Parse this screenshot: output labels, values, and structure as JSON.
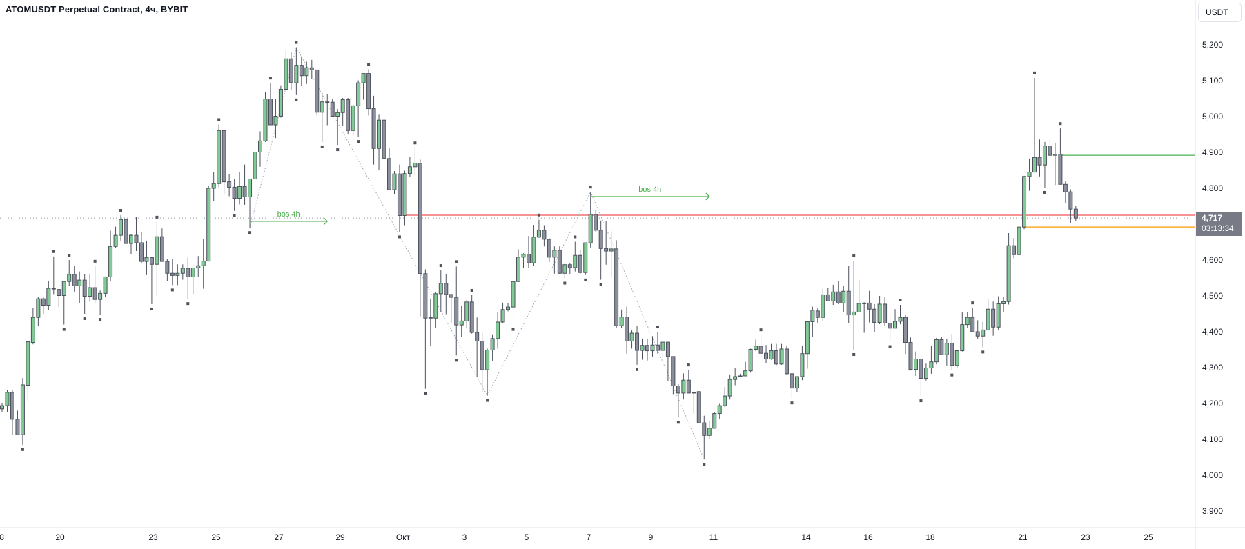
{
  "header": {
    "title": "ATOMUSDT Perpetual Contract, 4ч, BYBIT"
  },
  "price_axis": {
    "unit_button": "USDT",
    "ticks": [
      "5,200",
      "5,100",
      "5,000",
      "4,900",
      "4,800",
      "4,600",
      "4,500",
      "4,400",
      "4,300",
      "4,200",
      "4,100",
      "4,000",
      "3,900"
    ],
    "tick_values": [
      5200,
      5100,
      5000,
      4900,
      4800,
      4600,
      4500,
      4400,
      4300,
      4200,
      4100,
      4000,
      3900
    ],
    "current_price": "4,717",
    "countdown": "03:13:34"
  },
  "time_axis": {
    "ticks": [
      "8",
      "20",
      "23",
      "25",
      "27",
      "29",
      "Окт",
      "3",
      "5",
      "7",
      "9",
      "11",
      "14",
      "16",
      "18",
      "21",
      "23",
      "25"
    ]
  },
  "colors": {
    "bull": "#81c995",
    "bear": "#8b8e9b",
    "outline": "#4c515c",
    "bos": "#4caf50",
    "level_red": "#ef5350",
    "level_green": "#4caf50",
    "level_orange": "#ff9800",
    "price_tag": "#787b86"
  },
  "chart_data": {
    "type": "candlestick",
    "symbol": "ATOMUSDT",
    "timeframe": "4h",
    "ylim": [
      3850,
      5280
    ],
    "ohlc_fields": [
      "open",
      "high",
      "low",
      "close"
    ],
    "candles": [
      [
        4185,
        4200,
        4175,
        4194
      ],
      [
        4194,
        4237,
        4176,
        4231
      ],
      [
        4231,
        4237,
        4112,
        4156
      ],
      [
        4156,
        4180,
        4112,
        4113
      ],
      [
        4113,
        4271,
        4085,
        4252
      ],
      [
        4251,
        4372,
        4207,
        4372
      ],
      [
        4370,
        4467,
        4365,
        4440
      ],
      [
        4440,
        4496,
        4416,
        4492
      ],
      [
        4492,
        4496,
        4450,
        4474
      ],
      [
        4474,
        4541,
        4460,
        4521
      ],
      [
        4521,
        4610,
        4505,
        4521
      ],
      [
        4518,
        4518,
        4469,
        4501
      ],
      [
        4501,
        4540,
        4420,
        4540
      ],
      [
        4540,
        4600,
        4528,
        4560
      ],
      [
        4560,
        4583,
        4512,
        4528
      ],
      [
        4528,
        4568,
        4480,
        4544
      ],
      [
        4544,
        4560,
        4450,
        4499
      ],
      [
        4499,
        4562,
        4484,
        4523
      ],
      [
        4523,
        4583,
        4480,
        4490
      ],
      [
        4490,
        4515,
        4448,
        4507
      ],
      [
        4507,
        4553,
        4496,
        4553
      ],
      [
        4553,
        4682,
        4541,
        4638
      ],
      [
        4638,
        4693,
        4634,
        4669
      ],
      [
        4669,
        4725,
        4654,
        4713
      ],
      [
        4713,
        4721,
        4623,
        4646
      ],
      [
        4646,
        4672,
        4617,
        4669
      ],
      [
        4669,
        4720,
        4625,
        4648
      ],
      [
        4648,
        4678,
        4591,
        4596
      ],
      [
        4596,
        4654,
        4558,
        4607
      ],
      [
        4607,
        4607,
        4477,
        4588
      ],
      [
        4588,
        4706,
        4500,
        4665
      ],
      [
        4665,
        4688,
        4596,
        4596
      ],
      [
        4596,
        4602,
        4541,
        4563
      ],
      [
        4563,
        4602,
        4530,
        4557
      ],
      [
        4557,
        4588,
        4530,
        4563
      ],
      [
        4563,
        4588,
        4545,
        4577
      ],
      [
        4577,
        4607,
        4492,
        4553
      ],
      [
        4553,
        4579,
        4505,
        4578
      ],
      [
        4578,
        4611,
        4553,
        4584
      ],
      [
        4584,
        4659,
        4520,
        4597
      ],
      [
        4597,
        4807,
        4596,
        4800
      ],
      [
        4800,
        4845,
        4765,
        4813
      ],
      [
        4813,
        4978,
        4803,
        4961
      ],
      [
        4961,
        4961,
        4784,
        4818
      ],
      [
        4818,
        4840,
        4778,
        4803
      ],
      [
        4803,
        4826,
        4737,
        4772
      ],
      [
        4772,
        4845,
        4755,
        4805
      ],
      [
        4805,
        4866,
        4754,
        4776
      ],
      [
        4776,
        4826,
        4690,
        4826
      ],
      [
        4826,
        4904,
        4798,
        4901
      ],
      [
        4901,
        4959,
        4860,
        4932
      ],
      [
        4932,
        5069,
        4929,
        5049
      ],
      [
        5049,
        5094,
        4977,
        4977
      ],
      [
        4977,
        5048,
        4940,
        5001
      ],
      [
        5001,
        5087,
        4997,
        5076
      ],
      [
        5076,
        5186,
        5073,
        5161
      ],
      [
        5161,
        5180,
        5073,
        5094
      ],
      [
        5094,
        5193,
        5060,
        5143
      ],
      [
        5143,
        5168,
        5085,
        5114
      ],
      [
        5114,
        5153,
        5091,
        5136
      ],
      [
        5136,
        5158,
        5104,
        5130
      ],
      [
        5130,
        5130,
        5003,
        5012
      ],
      [
        5012,
        5066,
        4929,
        5041
      ],
      [
        5041,
        5063,
        4976,
        5040
      ],
      [
        5040,
        5049,
        5001,
        5001
      ],
      [
        5001,
        5021,
        4921,
        5011
      ],
      [
        5011,
        5052,
        4974,
        5047
      ],
      [
        5047,
        5052,
        4950,
        4961
      ],
      [
        4961,
        5033,
        4948,
        5030
      ],
      [
        5030,
        5101,
        4944,
        5094
      ],
      [
        5094,
        5120,
        5047,
        5120
      ],
      [
        5120,
        5132,
        5003,
        5022
      ],
      [
        5022,
        5058,
        4866,
        4911
      ],
      [
        4911,
        5005,
        4851,
        4990
      ],
      [
        4990,
        4993,
        4824,
        4883
      ],
      [
        4883,
        4911,
        4796,
        4796
      ],
      [
        4796,
        4848,
        4783,
        4840
      ],
      [
        4840,
        4866,
        4678,
        4724
      ],
      [
        4724,
        4849,
        4697,
        4841
      ],
      [
        4841,
        4887,
        4832,
        4860
      ],
      [
        4860,
        4913,
        4834,
        4870
      ],
      [
        4870,
        4880,
        4443,
        4562
      ],
      [
        4562,
        4574,
        4241,
        4438
      ],
      [
        4438,
        4491,
        4360,
        4440
      ],
      [
        4438,
        4510,
        4410,
        4506
      ],
      [
        4506,
        4571,
        4456,
        4535
      ],
      [
        4535,
        4560,
        4449,
        4504
      ],
      [
        4504,
        4504,
        4424,
        4496
      ],
      [
        4496,
        4582,
        4334,
        4419
      ],
      [
        4419,
        4472,
        4385,
        4430
      ],
      [
        4430,
        4488,
        4410,
        4483
      ],
      [
        4483,
        4502,
        4395,
        4398
      ],
      [
        4398,
        4440,
        4273,
        4374
      ],
      [
        4374,
        4397,
        4231,
        4294
      ],
      [
        4294,
        4353,
        4222,
        4349
      ],
      [
        4349,
        4393,
        4318,
        4381
      ],
      [
        4381,
        4454,
        4353,
        4427
      ],
      [
        4427,
        4481,
        4425,
        4462
      ],
      [
        4462,
        4480,
        4457,
        4469
      ],
      [
        4469,
        4542,
        4420,
        4540
      ],
      [
        4540,
        4630,
        4539,
        4608
      ],
      [
        4608,
        4619,
        4577,
        4616
      ],
      [
        4616,
        4667,
        4577,
        4592
      ],
      [
        4592,
        4698,
        4583,
        4664
      ],
      [
        4664,
        4712,
        4662,
        4683
      ],
      [
        4683,
        4697,
        4638,
        4658
      ],
      [
        4658,
        4661,
        4594,
        4608
      ],
      [
        4608,
        4638,
        4562,
        4627
      ],
      [
        4627,
        4638,
        4562,
        4563
      ],
      [
        4563,
        4592,
        4549,
        4587
      ],
      [
        4587,
        4592,
        4560,
        4579
      ],
      [
        4579,
        4651,
        4568,
        4613
      ],
      [
        4613,
        4629,
        4560,
        4565
      ],
      [
        4565,
        4648,
        4558,
        4648
      ],
      [
        4648,
        4790,
        4635,
        4727
      ],
      [
        4727,
        4740,
        4677,
        4683
      ],
      [
        4683,
        4710,
        4545,
        4632
      ],
      [
        4632,
        4709,
        4587,
        4625
      ],
      [
        4625,
        4680,
        4552,
        4631
      ],
      [
        4631,
        4655,
        4410,
        4417
      ],
      [
        4417,
        4462,
        4411,
        4441
      ],
      [
        4441,
        4470,
        4339,
        4374
      ],
      [
        4374,
        4404,
        4353,
        4396
      ],
      [
        4396,
        4417,
        4308,
        4348
      ],
      [
        4348,
        4381,
        4322,
        4362
      ],
      [
        4362,
        4381,
        4320,
        4347
      ],
      [
        4347,
        4388,
        4331,
        4363
      ],
      [
        4363,
        4400,
        4339,
        4348
      ],
      [
        4348,
        4372,
        4328,
        4371
      ],
      [
        4371,
        4371,
        4262,
        4331
      ],
      [
        4331,
        4331,
        4226,
        4249
      ],
      [
        4249,
        4254,
        4161,
        4229
      ],
      [
        4229,
        4284,
        4211,
        4265
      ],
      [
        4265,
        4294,
        4229,
        4229
      ],
      [
        4229,
        4234,
        4172,
        4231
      ],
      [
        4233,
        4234,
        4145,
        4146
      ],
      [
        4146,
        4166,
        4044,
        4111
      ],
      [
        4111,
        4150,
        4102,
        4131
      ],
      [
        4131,
        4175,
        4130,
        4172
      ],
      [
        4172,
        4199,
        4157,
        4194
      ],
      [
        4194,
        4246,
        4190,
        4221
      ],
      [
        4221,
        4281,
        4211,
        4267
      ],
      [
        4267,
        4299,
        4251,
        4275
      ],
      [
        4275,
        4283,
        4273,
        4277
      ],
      [
        4277,
        4316,
        4277,
        4291
      ],
      [
        4291,
        4353,
        4286,
        4351
      ],
      [
        4351,
        4378,
        4346,
        4360
      ],
      [
        4360,
        4392,
        4329,
        4340
      ],
      [
        4340,
        4363,
        4313,
        4324
      ],
      [
        4324,
        4366,
        4322,
        4347
      ],
      [
        4347,
        4366,
        4307,
        4310
      ],
      [
        4310,
        4366,
        4308,
        4352
      ],
      [
        4352,
        4360,
        4281,
        4283
      ],
      [
        4283,
        4283,
        4215,
        4243
      ],
      [
        4243,
        4276,
        4231,
        4275
      ],
      [
        4275,
        4360,
        4265,
        4339
      ],
      [
        4339,
        4430,
        4297,
        4428
      ],
      [
        4428,
        4470,
        4385,
        4460
      ],
      [
        4458,
        4466,
        4424,
        4440
      ],
      [
        4440,
        4520,
        4429,
        4503
      ],
      [
        4503,
        4522,
        4486,
        4486
      ],
      [
        4486,
        4531,
        4475,
        4511
      ],
      [
        4511,
        4542,
        4477,
        4480
      ],
      [
        4480,
        4527,
        4454,
        4513
      ],
      [
        4513,
        4584,
        4424,
        4447
      ],
      [
        4447,
        4598,
        4350,
        4455
      ],
      [
        4455,
        4544,
        4455,
        4479
      ],
      [
        4479,
        4482,
        4397,
        4480
      ],
      [
        4480,
        4514,
        4426,
        4463
      ],
      [
        4463,
        4477,
        4400,
        4426
      ],
      [
        4426,
        4500,
        4421,
        4477
      ],
      [
        4477,
        4498,
        4416,
        4424
      ],
      [
        4424,
        4440,
        4372,
        4410
      ],
      [
        4410,
        4463,
        4410,
        4429
      ],
      [
        4429,
        4475,
        4421,
        4440
      ],
      [
        4440,
        4447,
        4338,
        4370
      ],
      [
        4370,
        4384,
        4292,
        4295
      ],
      [
        4295,
        4345,
        4277,
        4324
      ],
      [
        4324,
        4328,
        4221,
        4270
      ],
      [
        4270,
        4311,
        4264,
        4299
      ],
      [
        4299,
        4361,
        4283,
        4316
      ],
      [
        4316,
        4383,
        4309,
        4378
      ],
      [
        4378,
        4386,
        4336,
        4336
      ],
      [
        4336,
        4381,
        4306,
        4368
      ],
      [
        4368,
        4394,
        4293,
        4306
      ],
      [
        4306,
        4350,
        4298,
        4347
      ],
      [
        4347,
        4454,
        4345,
        4420
      ],
      [
        4420,
        4455,
        4410,
        4440
      ],
      [
        4440,
        4467,
        4400,
        4400
      ],
      [
        4400,
        4432,
        4379,
        4388
      ],
      [
        4388,
        4427,
        4357,
        4405
      ],
      [
        4405,
        4490,
        4405,
        4463
      ],
      [
        4463,
        4484,
        4389,
        4413
      ],
      [
        4413,
        4499,
        4404,
        4478
      ],
      [
        4478,
        4498,
        4456,
        4484
      ],
      [
        4484,
        4675,
        4476,
        4640
      ],
      [
        4640,
        4661,
        4605,
        4615
      ],
      [
        4615,
        4692,
        4612,
        4692
      ],
      [
        4692,
        4835,
        4686,
        4833
      ],
      [
        4833,
        4883,
        4793,
        4845
      ],
      [
        4845,
        5108,
        4844,
        4886
      ],
      [
        4886,
        4936,
        4833,
        4865
      ],
      [
        4865,
        4929,
        4802,
        4918
      ],
      [
        4918,
        4938,
        4892,
        4892
      ],
      [
        4892,
        4927,
        4809,
        4895
      ],
      [
        4895,
        4967,
        4811,
        4811
      ],
      [
        4811,
        4820,
        4759,
        4790
      ],
      [
        4790,
        4797,
        4704,
        4742
      ],
      [
        4742,
        4751,
        4708,
        4717
      ]
    ],
    "pivot_highs": [
      10,
      13,
      18,
      23,
      30,
      42,
      52,
      57,
      71,
      80,
      85,
      88,
      91,
      104,
      111,
      114,
      127,
      133,
      147,
      165,
      174,
      188,
      200,
      205
    ],
    "pivot_lows": [
      4,
      12,
      16,
      19,
      29,
      33,
      36,
      45,
      48,
      57,
      62,
      65,
      69,
      77,
      82,
      88,
      94,
      99,
      109,
      113,
      116,
      123,
      131,
      136,
      153,
      165,
      172,
      178,
      184,
      190,
      202
    ],
    "zigzag": [
      {
        "candle": 48,
        "price": 4690
      },
      {
        "candle": 57,
        "price": 5193
      },
      {
        "candle": 94,
        "price": 4222
      },
      {
        "candle": 114,
        "price": 4790
      },
      {
        "candle": 136,
        "price": 4044
      }
    ],
    "annotations": [
      {
        "label": "bos 4h",
        "price": 4708,
        "from_candle": 48,
        "to_candle": 63
      },
      {
        "label": "bos 4h",
        "price": 4777,
        "from_candle": 114,
        "to_candle": 137
      }
    ],
    "levels": [
      {
        "color": "red",
        "price": 4725,
        "from_candle": 78
      },
      {
        "color": "green",
        "price": 4892,
        "from_candle": 205
      },
      {
        "color": "orange",
        "price": 4692,
        "from_candle": 198
      }
    ],
    "last_price": 4717
  }
}
